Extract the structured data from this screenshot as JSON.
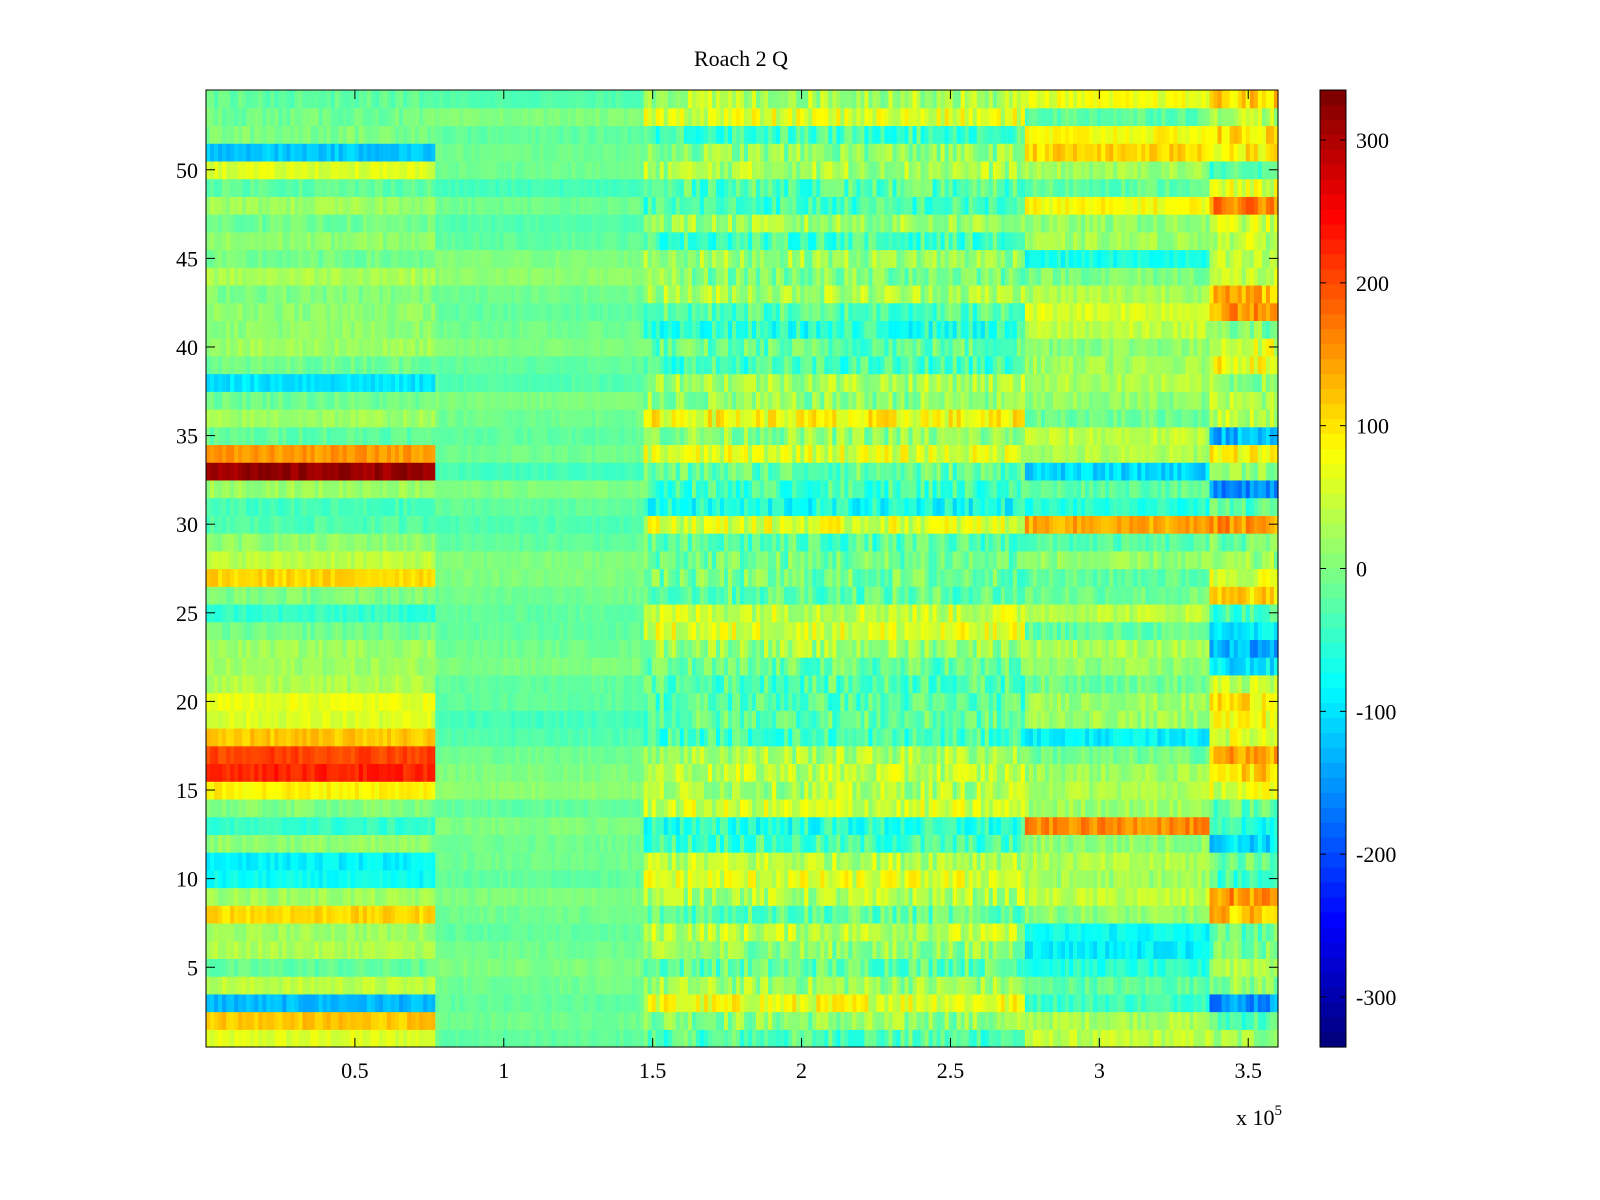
{
  "chart_data": {
    "type": "heatmap",
    "title": "Roach 2 Q",
    "xlabel": "",
    "ylabel": "",
    "x_exponent_label": "x 10",
    "x_exponent_power": "5",
    "xlim": [
      0,
      3.6
    ],
    "ylim": [
      0.5,
      54.5
    ],
    "x_ticks": [
      {
        "value": 0.5,
        "label": "0.5"
      },
      {
        "value": 1,
        "label": "1"
      },
      {
        "value": 1.5,
        "label": "1.5"
      },
      {
        "value": 2,
        "label": "2"
      },
      {
        "value": 2.5,
        "label": "2.5"
      },
      {
        "value": 3,
        "label": "3"
      },
      {
        "value": 3.5,
        "label": "3.5"
      }
    ],
    "y_ticks": [
      {
        "value": 5,
        "label": "5"
      },
      {
        "value": 10,
        "label": "10"
      },
      {
        "value": 15,
        "label": "15"
      },
      {
        "value": 20,
        "label": "20"
      },
      {
        "value": 25,
        "label": "25"
      },
      {
        "value": 30,
        "label": "30"
      },
      {
        "value": 35,
        "label": "35"
      },
      {
        "value": 40,
        "label": "40"
      },
      {
        "value": 45,
        "label": "45"
      },
      {
        "value": 50,
        "label": "50"
      }
    ],
    "colorbar": {
      "colormap": "jet",
      "clim": [
        -335,
        335
      ],
      "ticks": [
        {
          "value": 300,
          "label": "300"
        },
        {
          "value": 200,
          "label": "200"
        },
        {
          "value": 100,
          "label": "100"
        },
        {
          "value": 0,
          "label": "0"
        },
        {
          "value": -100,
          "label": "-100"
        },
        {
          "value": -200,
          "label": "-200"
        },
        {
          "value": -300,
          "label": "-300"
        }
      ]
    },
    "rows": 54,
    "x_segments": [
      {
        "name": "segment-1",
        "x_range": [
          0,
          0.77
        ]
      },
      {
        "name": "segment-2",
        "x_range": [
          0.77,
          1.47
        ]
      },
      {
        "name": "segment-3",
        "x_range": [
          1.47,
          2.75
        ]
      },
      {
        "name": "segment-4",
        "x_range": [
          2.75,
          3.37
        ]
      },
      {
        "name": "segment-5",
        "x_range": [
          3.37,
          3.6
        ]
      }
    ],
    "row_segment_means": [
      [
        60,
        -20,
        -30,
        40,
        20
      ],
      [
        120,
        -10,
        10,
        30,
        -30
      ],
      [
        -130,
        -20,
        70,
        -40,
        -150
      ],
      [
        40,
        -10,
        20,
        -20,
        10
      ],
      [
        -20,
        0,
        -20,
        -60,
        40
      ],
      [
        30,
        -10,
        10,
        -90,
        -10
      ],
      [
        20,
        -20,
        40,
        -80,
        -20
      ],
      [
        110,
        -10,
        -20,
        10,
        120
      ],
      [
        20,
        0,
        30,
        40,
        150
      ],
      [
        -80,
        -20,
        60,
        20,
        -40
      ],
      [
        -90,
        -10,
        40,
        30,
        -10
      ],
      [
        10,
        -10,
        -40,
        10,
        -100
      ],
      [
        -50,
        0,
        -60,
        160,
        -60
      ],
      [
        0,
        -20,
        50,
        20,
        -20
      ],
      [
        90,
        10,
        30,
        30,
        60
      ],
      [
        230,
        0,
        40,
        20,
        110
      ],
      [
        210,
        -10,
        30,
        -10,
        140
      ],
      [
        120,
        -30,
        -40,
        -90,
        60
      ],
      [
        60,
        -40,
        -20,
        20,
        80
      ],
      [
        70,
        -20,
        -30,
        20,
        100
      ],
      [
        30,
        -20,
        -30,
        -10,
        40
      ],
      [
        20,
        0,
        -20,
        10,
        -100
      ],
      [
        20,
        -10,
        20,
        30,
        -140
      ],
      [
        -10,
        -20,
        60,
        -20,
        -100
      ],
      [
        -50,
        -20,
        50,
        40,
        -40
      ],
      [
        0,
        -10,
        -20,
        -10,
        110
      ],
      [
        110,
        0,
        -10,
        -20,
        60
      ],
      [
        40,
        0,
        -10,
        10,
        10
      ],
      [
        10,
        -20,
        -30,
        -30,
        -10
      ],
      [
        -30,
        -30,
        60,
        140,
        150
      ],
      [
        -40,
        -20,
        -70,
        -60,
        -30
      ],
      [
        20,
        0,
        -40,
        -20,
        -150
      ],
      [
        320,
        -40,
        -20,
        -110,
        20
      ],
      [
        150,
        -10,
        60,
        30,
        90
      ],
      [
        -20,
        -20,
        10,
        40,
        -130
      ],
      [
        20,
        -10,
        80,
        -10,
        40
      ],
      [
        -10,
        0,
        10,
        10,
        30
      ],
      [
        -100,
        -30,
        30,
        30,
        10
      ],
      [
        -10,
        -20,
        -40,
        20,
        80
      ],
      [
        20,
        0,
        -20,
        10,
        60
      ],
      [
        10,
        -10,
        -60,
        40,
        0
      ],
      [
        10,
        -20,
        -30,
        60,
        150
      ],
      [
        0,
        -10,
        30,
        30,
        130
      ],
      [
        30,
        10,
        0,
        0,
        40
      ],
      [
        -10,
        0,
        20,
        -70,
        30
      ],
      [
        10,
        -20,
        -40,
        20,
        40
      ],
      [
        -10,
        -30,
        20,
        10,
        50
      ],
      [
        20,
        -10,
        -40,
        80,
        170
      ],
      [
        -20,
        -40,
        -30,
        -20,
        60
      ],
      [
        60,
        -10,
        30,
        20,
        -40
      ],
      [
        -120,
        -10,
        10,
        110,
        90
      ],
      [
        0,
        -20,
        -40,
        80,
        100
      ],
      [
        -10,
        0,
        60,
        -20,
        40
      ],
      [
        -20,
        -30,
        30,
        70,
        110
      ]
    ]
  }
}
